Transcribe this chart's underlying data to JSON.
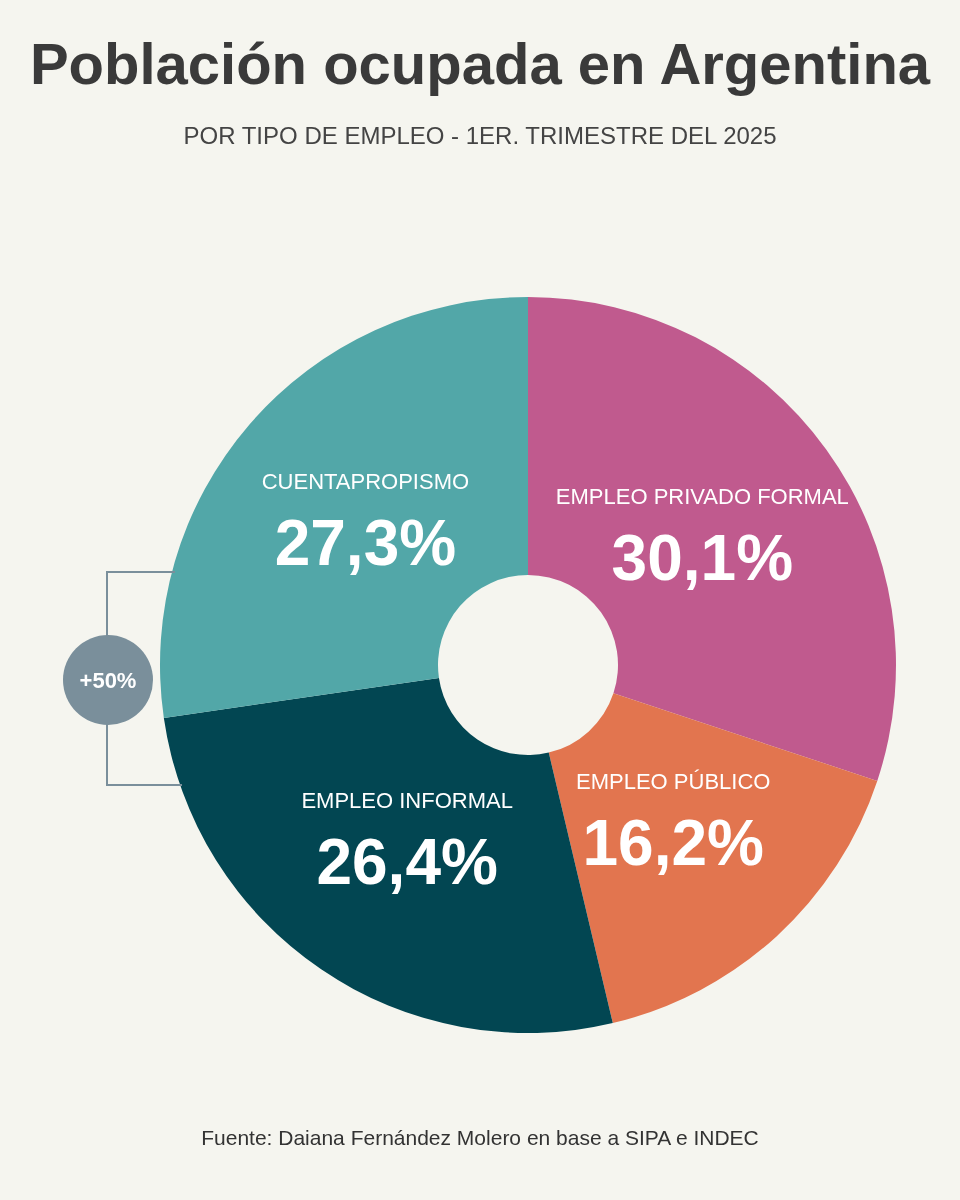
{
  "chart_data": {
    "type": "donut",
    "title": "Población ocupada en Argentina",
    "subtitle": "POR TIPO DE EMPLEO - 1ER. TRIMESTRE DEL 2025",
    "categories": [
      "EMPLEO PRIVADO FORMAL",
      "EMPLEO PÚBLICO",
      "EMPLEO INFORMAL",
      "CUENTAPROPISMO"
    ],
    "values": [
      30.1,
      16.2,
      26.4,
      27.3
    ],
    "colors": [
      "#c05a8e",
      "#e2754f",
      "#024652",
      "#52a7a8"
    ],
    "value_labels": [
      "30,1%",
      "16,2%",
      "26,4%",
      "27,3%"
    ],
    "annotations": [
      "+50%",
      "Fuente: Daiana Fernández Molero en base a SIPA e INDEC"
    ]
  }
}
